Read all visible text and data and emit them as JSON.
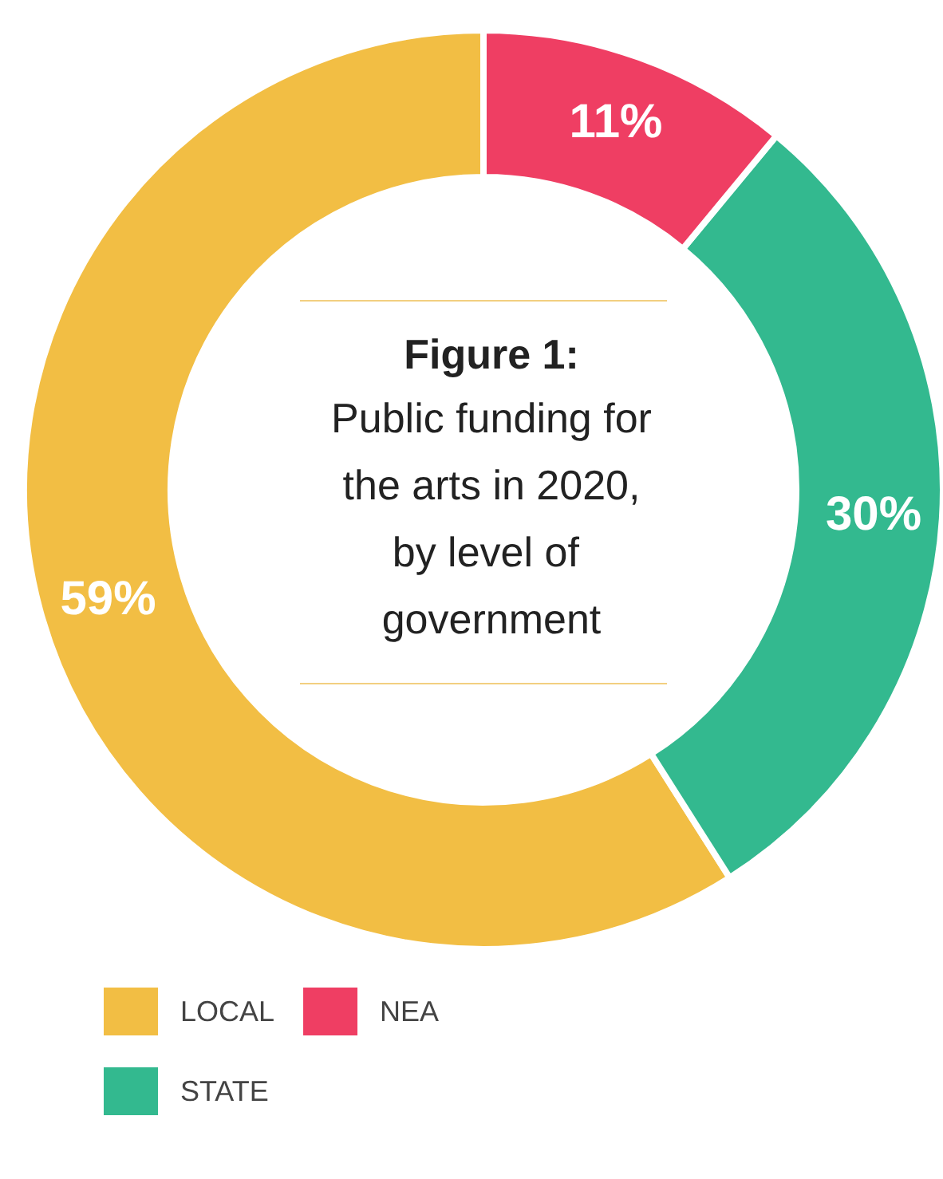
{
  "chart_data": {
    "type": "donut",
    "title": "Figure 1:",
    "subtitle": "Public funding for the arts in 2020, by level of government",
    "categories": [
      "LOCAL",
      "STATE",
      "NEA"
    ],
    "values": [
      59,
      30,
      11
    ],
    "value_labels": [
      "59%",
      "30%",
      "11%"
    ],
    "colors": [
      "#f2be44",
      "#33b98f",
      "#ef3e63"
    ],
    "legend": "bottom left"
  }
}
